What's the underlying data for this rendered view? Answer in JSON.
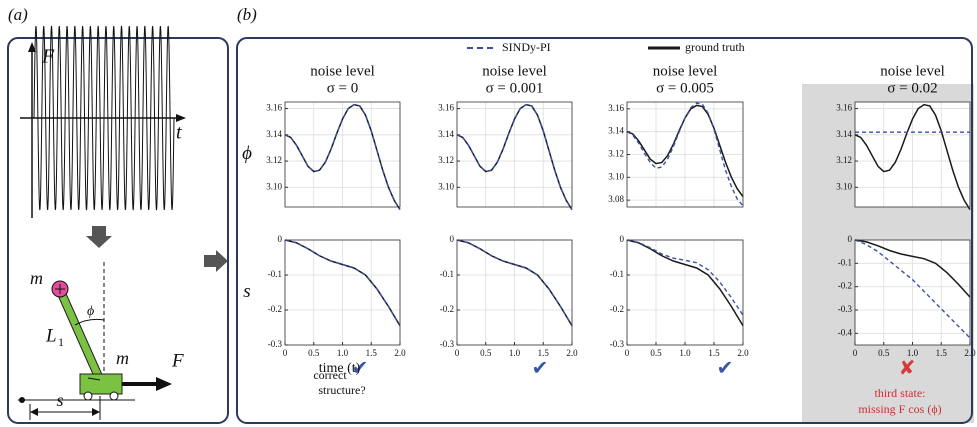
{
  "panel_labels": [
    "(a)",
    "(b)"
  ],
  "panel_a": {
    "force_label": "F",
    "time_label": "t",
    "mass_top": "m",
    "angle": "ϕ",
    "length": "L",
    "length_sub": "1",
    "mass_cart": "m",
    "force_cart": "F",
    "position": "s"
  },
  "structure_question": "correct structure?",
  "structure_marks": [
    "✔",
    "✔",
    "✔",
    "✘"
  ],
  "failure_note": [
    "third state:",
    "missing F cos (ϕ)"
  ],
  "chart_data": [
    {
      "type": "line",
      "title": "noise level",
      "subtitle": "σ = 0",
      "ylabel": "ϕ",
      "x": [
        0,
        0.1,
        0.2,
        0.3,
        0.4,
        0.5,
        0.6,
        0.7,
        0.8,
        0.9,
        1,
        1.1,
        1.2,
        1.3,
        1.4,
        1.5,
        1.6,
        1.7,
        1.8,
        1.9,
        2
      ],
      "xlim": [
        0,
        2
      ],
      "ylim": [
        3.085,
        3.165
      ],
      "yticks": [
        {
          "value": 3.1,
          "label": "3.10"
        },
        3.12,
        3.14,
        3.16
      ],
      "grid": true,
      "series": [
        {
          "name": "SINDy-PI",
          "color": "#3a4fa8",
          "dash": true,
          "values": [
            3.14,
            3.138,
            3.132,
            3.124,
            3.116,
            3.112,
            3.113,
            3.119,
            3.129,
            3.141,
            3.152,
            3.16,
            3.163,
            3.162,
            3.155,
            3.143,
            3.128,
            3.113,
            3.1,
            3.09,
            3.083
          ]
        },
        {
          "name": "ground truth",
          "color": "#1a1a1a",
          "dash": false,
          "values": [
            3.14,
            3.138,
            3.132,
            3.124,
            3.116,
            3.112,
            3.113,
            3.119,
            3.129,
            3.141,
            3.152,
            3.16,
            3.163,
            3.162,
            3.155,
            3.143,
            3.128,
            3.113,
            3.1,
            3.09,
            3.083
          ]
        }
      ]
    },
    {
      "type": "line",
      "ylabel": "s",
      "xlabel": "time (t)",
      "x": [
        0,
        0.2,
        0.4,
        0.6,
        0.8,
        1,
        1.2,
        1.4,
        1.6,
        1.8,
        2
      ],
      "xlim": [
        0,
        2
      ],
      "xticks": [
        0,
        0.5,
        {
          "value": 1,
          "label": "1.0"
        },
        1.5,
        {
          "value": 2,
          "label": "2.0"
        }
      ],
      "ylim": [
        -0.3,
        0
      ],
      "yticks": [
        0,
        -0.1,
        -0.2,
        -0.3
      ],
      "grid": true,
      "series": [
        {
          "name": "SINDy-PI",
          "color": "#3a4fa8",
          "dash": true,
          "values": [
            0,
            -0.008,
            -0.025,
            -0.045,
            -0.06,
            -0.07,
            -0.08,
            -0.1,
            -0.14,
            -0.19,
            -0.245
          ]
        },
        {
          "name": "ground truth",
          "color": "#1a1a1a",
          "dash": false,
          "values": [
            0,
            -0.008,
            -0.025,
            -0.045,
            -0.06,
            -0.07,
            -0.08,
            -0.1,
            -0.14,
            -0.19,
            -0.245
          ]
        }
      ]
    },
    {
      "type": "line",
      "title": "noise level",
      "subtitle": "σ = 0.001",
      "x": [
        0,
        0.1,
        0.2,
        0.3,
        0.4,
        0.5,
        0.6,
        0.7,
        0.8,
        0.9,
        1,
        1.1,
        1.2,
        1.3,
        1.4,
        1.5,
        1.6,
        1.7,
        1.8,
        1.9,
        2
      ],
      "xlim": [
        0,
        2
      ],
      "ylim": [
        3.085,
        3.165
      ],
      "yticks": [
        {
          "value": 3.1,
          "label": "3.10"
        },
        3.12,
        3.14,
        3.16
      ],
      "grid": true,
      "series": [
        {
          "name": "SINDy-PI",
          "color": "#3a4fa8",
          "dash": true,
          "values": [
            3.14,
            3.138,
            3.132,
            3.124,
            3.116,
            3.112,
            3.113,
            3.119,
            3.129,
            3.141,
            3.152,
            3.16,
            3.163,
            3.162,
            3.155,
            3.143,
            3.128,
            3.113,
            3.1,
            3.09,
            3.083
          ]
        },
        {
          "name": "ground truth",
          "color": "#1a1a1a",
          "dash": false,
          "values": [
            3.14,
            3.138,
            3.132,
            3.124,
            3.116,
            3.112,
            3.113,
            3.119,
            3.129,
            3.141,
            3.152,
            3.16,
            3.163,
            3.162,
            3.155,
            3.143,
            3.128,
            3.113,
            3.1,
            3.09,
            3.083
          ]
        }
      ]
    },
    {
      "type": "line",
      "x": [
        0,
        0.2,
        0.4,
        0.6,
        0.8,
        1,
        1.2,
        1.4,
        1.6,
        1.8,
        2
      ],
      "xlim": [
        0,
        2
      ],
      "xticks": [
        0,
        0.5,
        {
          "value": 1,
          "label": "1.0"
        },
        1.5,
        {
          "value": 2,
          "label": "2.0"
        }
      ],
      "ylim": [
        -0.3,
        0
      ],
      "yticks": [
        0,
        -0.1,
        -0.2,
        -0.3
      ],
      "grid": true,
      "series": [
        {
          "name": "SINDy-PI",
          "color": "#3a4fa8",
          "dash": true,
          "values": [
            0,
            -0.008,
            -0.025,
            -0.045,
            -0.06,
            -0.07,
            -0.08,
            -0.1,
            -0.14,
            -0.19,
            -0.245
          ]
        },
        {
          "name": "ground truth",
          "color": "#1a1a1a",
          "dash": false,
          "values": [
            0,
            -0.008,
            -0.025,
            -0.045,
            -0.06,
            -0.07,
            -0.08,
            -0.1,
            -0.14,
            -0.19,
            -0.245
          ]
        }
      ]
    },
    {
      "type": "line",
      "title": "noise level",
      "subtitle": "σ = 0.005",
      "x": [
        0,
        0.1,
        0.2,
        0.3,
        0.4,
        0.5,
        0.6,
        0.7,
        0.8,
        0.9,
        1,
        1.1,
        1.2,
        1.3,
        1.4,
        1.5,
        1.6,
        1.7,
        1.8,
        1.9,
        2
      ],
      "xlim": [
        0,
        2
      ],
      "ylim": [
        3.074,
        3.166
      ],
      "yticks": [
        3.08,
        {
          "value": 3.1,
          "label": "3.10"
        },
        3.12,
        3.14,
        3.16
      ],
      "grid": true,
      "series": [
        {
          "name": "SINDy-PI",
          "color": "#3a4fa8",
          "dash": true,
          "values": [
            3.14,
            3.137,
            3.13,
            3.121,
            3.113,
            3.108,
            3.109,
            3.116,
            3.127,
            3.14,
            3.152,
            3.161,
            3.165,
            3.164,
            3.156,
            3.142,
            3.124,
            3.106,
            3.092,
            3.081,
            3.075
          ]
        },
        {
          "name": "ground truth",
          "color": "#1a1a1a",
          "dash": false,
          "values": [
            3.14,
            3.138,
            3.132,
            3.124,
            3.116,
            3.112,
            3.113,
            3.119,
            3.129,
            3.141,
            3.152,
            3.16,
            3.163,
            3.162,
            3.155,
            3.143,
            3.128,
            3.113,
            3.1,
            3.09,
            3.083
          ]
        }
      ]
    },
    {
      "type": "line",
      "x": [
        0,
        0.2,
        0.4,
        0.6,
        0.8,
        1,
        1.2,
        1.4,
        1.6,
        1.8,
        2
      ],
      "xlim": [
        0,
        2
      ],
      "xticks": [
        0,
        0.5,
        {
          "value": 1,
          "label": "1.0"
        },
        1.5,
        {
          "value": 2,
          "label": "2.0"
        }
      ],
      "ylim": [
        -0.3,
        0
      ],
      "yticks": [
        0,
        -0.1,
        -0.2,
        -0.3
      ],
      "grid": true,
      "series": [
        {
          "name": "SINDy-PI",
          "color": "#3a4fa8",
          "dash": true,
          "values": [
            0,
            -0.007,
            -0.022,
            -0.04,
            -0.052,
            -0.058,
            -0.065,
            -0.085,
            -0.12,
            -0.165,
            -0.215
          ]
        },
        {
          "name": "ground truth",
          "color": "#1a1a1a",
          "dash": false,
          "values": [
            0,
            -0.008,
            -0.025,
            -0.045,
            -0.06,
            -0.07,
            -0.08,
            -0.1,
            -0.14,
            -0.19,
            -0.245
          ]
        }
      ]
    },
    {
      "type": "line",
      "title": "noise level",
      "subtitle": "σ = 0.02",
      "x": [
        0,
        0.1,
        0.2,
        0.3,
        0.4,
        0.5,
        0.6,
        0.7,
        0.8,
        0.9,
        1,
        1.1,
        1.2,
        1.3,
        1.4,
        1.5,
        1.6,
        1.7,
        1.8,
        1.9,
        2
      ],
      "xlim": [
        0,
        2
      ],
      "ylim": [
        3.085,
        3.165
      ],
      "yticks": [
        {
          "value": 3.1,
          "label": "3.10"
        },
        3.12,
        3.14,
        3.16
      ],
      "grid": true,
      "series": [
        {
          "name": "SINDy-PI",
          "color": "#3a4fa8",
          "dash": true,
          "values": [
            3.142,
            3.142,
            3.142,
            3.142,
            3.142,
            3.142,
            3.142,
            3.142,
            3.142,
            3.142,
            3.142,
            3.142,
            3.142,
            3.142,
            3.142,
            3.142,
            3.142,
            3.142,
            3.142,
            3.142,
            3.142
          ]
        },
        {
          "name": "ground truth",
          "color": "#1a1a1a",
          "dash": false,
          "values": [
            3.14,
            3.138,
            3.132,
            3.124,
            3.116,
            3.112,
            3.113,
            3.119,
            3.129,
            3.141,
            3.152,
            3.16,
            3.163,
            3.162,
            3.155,
            3.143,
            3.128,
            3.113,
            3.1,
            3.09,
            3.083
          ]
        }
      ]
    },
    {
      "type": "line",
      "x": [
        0,
        0.2,
        0.4,
        0.6,
        0.8,
        1,
        1.2,
        1.4,
        1.6,
        1.8,
        2
      ],
      "xlim": [
        0,
        2
      ],
      "xticks": [
        0,
        0.5,
        {
          "value": 1,
          "label": "1.0"
        },
        1.5,
        {
          "value": 2,
          "label": "2.0"
        }
      ],
      "ylim": [
        -0.45,
        0
      ],
      "yticks": [
        0,
        -0.1,
        -0.2,
        -0.3,
        -0.4
      ],
      "grid": true,
      "series": [
        {
          "name": "SINDy-PI",
          "color": "#3a4fa8",
          "dash": true,
          "values": [
            0,
            -0.02,
            -0.05,
            -0.09,
            -0.13,
            -0.17,
            -0.22,
            -0.27,
            -0.32,
            -0.37,
            -0.42
          ]
        },
        {
          "name": "ground truth",
          "color": "#1a1a1a",
          "dash": false,
          "values": [
            0,
            -0.008,
            -0.025,
            -0.045,
            -0.06,
            -0.07,
            -0.08,
            -0.1,
            -0.14,
            -0.19,
            -0.245
          ]
        }
      ]
    }
  ]
}
